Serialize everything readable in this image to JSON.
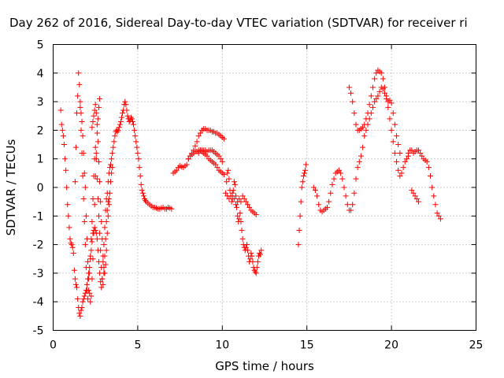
{
  "chart_data": {
    "type": "scatter",
    "title": "Day 262 of 2016, Sidereal Day-to-day VTEC variation (SDTVAR) for receiver ri",
    "xlabel": "GPS time / hours",
    "ylabel": "SDTVAR / TECUs",
    "xlim": [
      0,
      25
    ],
    "ylim": [
      -5,
      5
    ],
    "xticks": [
      0,
      5,
      10,
      15,
      20,
      25
    ],
    "yticks": [
      -5,
      -4,
      -3,
      -2,
      -1,
      0,
      1,
      2,
      3,
      4,
      5
    ],
    "grid": true,
    "marker": "plus",
    "color": "#ff0000",
    "series": [
      {
        "x": [
          0.45,
          0.5,
          0.55,
          0.6,
          0.65,
          0.7,
          0.75,
          0.8,
          0.85,
          0.9,
          0.95,
          1.0,
          1.05,
          1.1,
          1.15,
          1.2,
          1.25,
          1.3,
          1.35,
          1.4,
          1.45,
          1.5,
          1.55,
          1.6,
          1.65,
          1.7,
          1.75,
          1.8,
          1.85,
          1.9,
          1.95,
          2.0,
          2.05,
          2.1,
          2.15,
          2.2,
          2.25,
          2.3,
          2.35,
          2.4,
          2.45,
          2.5,
          2.55,
          2.6,
          2.65,
          2.7,
          2.75,
          2.8,
          2.85,
          2.9,
          2.95,
          3.0,
          3.05,
          3.1,
          3.15,
          3.2,
          3.25,
          3.3,
          3.35,
          3.4,
          3.45,
          3.5,
          3.55,
          3.6,
          3.65,
          3.7,
          3.75,
          3.8,
          3.85,
          3.9,
          3.95,
          4.0,
          4.05,
          4.1,
          4.15,
          4.2,
          4.25,
          4.3,
          4.35,
          4.4,
          4.45,
          4.5,
          4.55,
          4.6,
          4.65,
          4.7,
          4.75,
          4.8,
          4.85,
          4.9,
          4.95,
          5.0,
          5.05,
          5.1,
          5.15,
          5.2,
          5.25,
          5.3,
          5.35,
          5.4,
          5.45,
          5.5,
          5.6,
          5.7,
          5.8,
          5.9,
          6.0,
          6.1,
          6.2,
          6.3,
          6.4,
          6.5,
          6.6,
          6.7,
          6.8,
          6.9,
          7.0
        ],
        "y": [
          2.7,
          2.2,
          2.0,
          1.8,
          1.5,
          1.0,
          0.6,
          0.0,
          -0.6,
          -1.0,
          -1.4,
          -1.8,
          -1.95,
          -2.0,
          -2.1,
          -2.3,
          -2.9,
          -3.2,
          -3.4,
          -3.5,
          -3.9,
          -4.2,
          -4.4,
          -4.5,
          -4.3,
          -4.2,
          -4.0,
          -3.9,
          -3.8,
          -3.7,
          -3.6,
          -3.4,
          -3.2,
          -3.0,
          -2.8,
          -2.5,
          -2.2,
          -1.9,
          -1.6,
          -1.5,
          -1.4,
          -1.5,
          -1.6,
          -1.8,
          -2.2,
          -2.6,
          -3.0,
          -3.3,
          -3.5,
          -3.2,
          -2.6,
          -2.0,
          -1.4,
          -0.8,
          -0.4,
          -0.2,
          0.2,
          0.5,
          0.7,
          0.8,
          1.0,
          1.2,
          1.4,
          1.6,
          1.8,
          1.95,
          2.0,
          1.95,
          2.0,
          2.1,
          2.2,
          2.3,
          2.45,
          2.6,
          2.7,
          2.9,
          3.0,
          2.9,
          2.7,
          2.5,
          2.4,
          2.3,
          2.35,
          2.45,
          2.4,
          2.3,
          2.2,
          2.0,
          1.8,
          1.6,
          1.4,
          1.2,
          1.0,
          0.7,
          0.4,
          0.1,
          -0.1,
          -0.2,
          -0.3,
          -0.4,
          -0.45,
          -0.5,
          -0.55,
          -0.6,
          -0.65,
          -0.7,
          -0.7,
          -0.72,
          -0.75,
          -0.75,
          -0.72,
          -0.7,
          -0.75,
          -0.75,
          -0.7,
          -0.72,
          -0.75
        ]
      },
      {
        "x": [
          1.3,
          1.35,
          1.4,
          1.45,
          1.5,
          1.55,
          1.6,
          1.65,
          1.7,
          1.75,
          1.8,
          1.85,
          1.9,
          1.95,
          2.0,
          2.05,
          2.1,
          2.15,
          2.2,
          2.25,
          2.3,
          2.35,
          2.4,
          2.45,
          2.5,
          2.55,
          2.6,
          2.65,
          2.7,
          2.75,
          2.8,
          2.85,
          2.9,
          2.95,
          3.0,
          3.05,
          3.1,
          3.15,
          3.2,
          3.25,
          3.3
        ],
        "y": [
          0.2,
          1.4,
          2.6,
          3.2,
          4.0,
          3.6,
          2.8,
          2.0,
          1.2,
          0.4,
          -0.4,
          -1.2,
          -2.0,
          -2.8,
          -3.6,
          -3.9,
          -3.6,
          -3.0,
          -2.4,
          -1.8,
          -1.2,
          -0.4,
          0.4,
          1.0,
          1.4,
          1.0,
          0.3,
          -0.4,
          -1.0,
          -1.6,
          -2.2,
          -2.8,
          -3.2,
          -3.4,
          -3.0,
          -2.4,
          -1.8,
          -1.2,
          -0.8,
          -0.5,
          -0.4
        ]
      },
      {
        "x": [
          1.6,
          1.65,
          1.7,
          1.75,
          1.8,
          1.85,
          1.9,
          1.95,
          2.0,
          2.05,
          2.1,
          2.15,
          2.2,
          2.25,
          2.3,
          2.35,
          2.4,
          2.45,
          2.5,
          2.55,
          2.6,
          2.65,
          2.7,
          2.75
        ],
        "y": [
          3.0,
          2.6,
          2.3,
          1.8,
          1.2,
          0.5,
          0.0,
          -1.0,
          -1.8,
          -2.6,
          -3.2,
          -3.7,
          -4.0,
          -3.8,
          -3.2,
          -2.5,
          -1.6,
          -0.6,
          0.4,
          1.2,
          1.9,
          2.4,
          2.8,
          3.1
        ]
      },
      {
        "x": [
          2.3,
          2.35,
          2.4,
          2.45,
          2.5,
          2.55,
          2.6,
          2.65,
          2.7,
          2.75,
          2.8,
          2.85,
          2.9,
          2.95,
          3.0,
          3.05,
          3.1,
          3.15,
          3.2,
          3.25,
          3.3,
          3.35,
          3.4,
          3.45,
          3.5
        ],
        "y": [
          2.1,
          2.3,
          2.5,
          2.7,
          2.9,
          2.6,
          2.2,
          1.6,
          0.9,
          0.2,
          -0.5,
          -1.2,
          -1.8,
          -2.4,
          -2.8,
          -3.0,
          -2.7,
          -2.2,
          -1.6,
          -1.0,
          -0.6,
          -0.2,
          0.2,
          0.5,
          0.7
        ]
      },
      {
        "x": [
          7.1,
          7.2,
          7.3,
          7.4,
          7.5,
          7.6,
          7.7,
          7.8,
          7.9,
          8.0,
          8.1,
          8.2,
          8.3,
          8.4,
          8.5,
          8.6,
          8.7,
          8.8,
          8.9,
          9.0,
          9.1,
          9.2,
          9.3,
          9.4,
          9.5,
          9.6,
          9.7,
          9.8,
          9.9,
          10.0,
          10.1
        ],
        "y": [
          0.5,
          0.55,
          0.6,
          0.7,
          0.75,
          0.72,
          0.7,
          0.75,
          0.8,
          1.0,
          1.1,
          1.15,
          1.2,
          1.25,
          1.25,
          1.3,
          1.3,
          1.25,
          1.2,
          1.15,
          1.1,
          1.0,
          0.95,
          0.9,
          0.85,
          0.8,
          0.7,
          0.6,
          0.55,
          0.5,
          0.45
        ]
      },
      {
        "x": [
          8.0,
          8.1,
          8.2,
          8.3,
          8.4,
          8.5,
          8.6,
          8.7,
          8.8,
          8.9,
          9.0,
          9.1,
          9.2,
          9.3,
          9.4,
          9.5,
          9.6,
          9.7,
          9.8,
          9.9,
          10.0,
          10.1
        ],
        "y": [
          1.0,
          1.1,
          1.2,
          1.3,
          1.45,
          1.6,
          1.8,
          1.9,
          2.0,
          2.05,
          2.05,
          2.0,
          2.0,
          2.0,
          1.95,
          1.95,
          1.9,
          1.9,
          1.85,
          1.8,
          1.75,
          1.7
        ]
      },
      {
        "x": [
          8.6,
          8.7,
          8.8,
          8.9,
          9.0,
          9.1,
          9.2,
          9.3,
          9.4,
          9.5,
          9.6,
          9.7,
          9.8,
          9.9,
          10.0
        ],
        "y": [
          1.2,
          1.3,
          1.3,
          1.3,
          1.3,
          1.25,
          1.3,
          1.3,
          1.3,
          1.25,
          1.2,
          1.15,
          1.1,
          1.0,
          0.9
        ]
      },
      {
        "x": [
          10.2,
          10.25,
          10.3,
          10.35,
          10.4,
          10.45,
          10.5,
          10.55,
          10.6,
          10.65,
          10.7,
          10.75,
          10.8,
          10.85,
          10.9,
          10.95,
          11.0,
          11.05,
          11.1,
          11.15,
          11.2,
          11.25,
          11.3,
          11.35,
          11.4,
          11.45,
          11.5,
          11.55,
          11.6,
          11.65,
          11.7,
          11.75,
          11.8,
          11.85,
          11.9,
          11.95,
          12.0,
          12.05,
          12.1,
          12.15,
          12.2,
          12.25,
          12.3
        ],
        "y": [
          -0.2,
          0.2,
          0.5,
          0.6,
          0.3,
          -0.1,
          -0.3,
          -0.5,
          -0.4,
          -0.1,
          0.2,
          0.1,
          -0.3,
          -0.7,
          -1.0,
          -1.2,
          -1.1,
          -0.9,
          -1.2,
          -1.5,
          -1.8,
          -2.0,
          -2.1,
          -2.2,
          -2.1,
          -2.0,
          -2.2,
          -2.4,
          -2.6,
          -2.5,
          -2.3,
          -2.4,
          -2.6,
          -2.8,
          -2.9,
          -2.95,
          -3.0,
          -2.8,
          -2.6,
          -2.4,
          -2.3,
          -2.35,
          -2.2
        ]
      },
      {
        "x": [
          10.3,
          10.4,
          10.5,
          10.6,
          10.7,
          10.8,
          10.9,
          11.0,
          11.1,
          11.2,
          11.3,
          11.4,
          11.5,
          11.6,
          11.7,
          11.8,
          11.9,
          12.0
        ],
        "y": [
          -0.3,
          -0.4,
          -0.3,
          -0.2,
          -0.4,
          -0.6,
          -0.5,
          -0.4,
          -0.5,
          -0.3,
          -0.4,
          -0.5,
          -0.6,
          -0.7,
          -0.8,
          -0.85,
          -0.9,
          -0.95
        ]
      },
      {
        "x": [
          14.5,
          14.55,
          14.6,
          14.65,
          14.7,
          14.75,
          14.8,
          14.85,
          14.9,
          14.95
        ],
        "y": [
          -2.0,
          -1.5,
          -1.0,
          -0.5,
          0.0,
          0.2,
          0.4,
          0.5,
          0.6,
          0.8
        ]
      },
      {
        "x": [
          15.4,
          15.5,
          15.6,
          15.7,
          15.8,
          15.9,
          16.0,
          16.1,
          16.2,
          16.3,
          16.4,
          16.5,
          16.6,
          16.7,
          16.8,
          16.9,
          17.0,
          17.1,
          17.2,
          17.3,
          17.4,
          17.5,
          17.6,
          17.7,
          17.8,
          17.9,
          18.0,
          18.1,
          18.2,
          18.3,
          18.4,
          18.5,
          18.6,
          18.7,
          18.8,
          18.9,
          19.0,
          19.1,
          19.2,
          19.3,
          19.4,
          19.5,
          19.6,
          19.7,
          19.8,
          19.9,
          20.0,
          20.1,
          20.2,
          20.3,
          20.4,
          20.5,
          20.6,
          20.7,
          20.8,
          20.9,
          21.0
        ],
        "y": [
          0.0,
          -0.1,
          -0.3,
          -0.6,
          -0.8,
          -0.85,
          -0.8,
          -0.75,
          -0.7,
          -0.5,
          -0.2,
          0.1,
          0.3,
          0.5,
          0.55,
          0.6,
          0.5,
          0.3,
          0.0,
          -0.3,
          -0.6,
          -0.8,
          -0.8,
          -0.6,
          -0.2,
          0.3,
          0.7,
          0.9,
          1.1,
          1.4,
          1.8,
          2.0,
          2.2,
          2.4,
          2.6,
          2.8,
          3.0,
          3.1,
          3.2,
          3.35,
          3.5,
          3.45,
          3.3,
          3.1,
          2.8,
          2.4,
          2.0,
          1.6,
          1.2,
          0.9,
          0.6,
          0.4,
          0.5,
          0.7,
          0.9,
          1.0,
          1.1
        ]
      },
      {
        "x": [
          17.5,
          17.6,
          17.7,
          17.8,
          17.9,
          18.0,
          18.1,
          18.2,
          18.3,
          18.4,
          18.5,
          18.6,
          18.7,
          18.8,
          18.9,
          19.0,
          19.1,
          19.2,
          19.3,
          19.4,
          19.5,
          19.6,
          19.7,
          19.8,
          19.9,
          20.0,
          20.1,
          20.2,
          20.3,
          20.4,
          20.5
        ],
        "y": [
          3.5,
          3.3,
          3.0,
          2.6,
          2.2,
          2.0,
          2.0,
          2.05,
          2.1,
          2.2,
          2.4,
          2.6,
          2.9,
          3.2,
          3.5,
          3.8,
          4.0,
          4.1,
          4.05,
          4.0,
          3.8,
          3.5,
          3.2,
          3.0,
          3.05,
          2.95,
          2.6,
          2.2,
          1.8,
          1.5,
          1.2
        ]
      },
      {
        "x": [
          21.0,
          21.1,
          21.2,
          21.3,
          21.4,
          21.5,
          21.6,
          21.7,
          21.8,
          21.9,
          22.0,
          22.1,
          22.2,
          22.3,
          22.4,
          22.5,
          22.6,
          22.7,
          22.8,
          22.9
        ],
        "y": [
          1.2,
          1.3,
          1.3,
          1.2,
          1.25,
          1.3,
          1.3,
          1.2,
          1.1,
          1.0,
          0.95,
          0.9,
          0.7,
          0.4,
          0.0,
          -0.3,
          -0.6,
          -0.9,
          -1.0,
          -1.1
        ]
      },
      {
        "x": [
          21.2,
          21.3,
          21.4,
          21.5,
          21.6
        ],
        "y": [
          -0.1,
          -0.2,
          -0.3,
          -0.4,
          -0.5
        ]
      }
    ]
  }
}
